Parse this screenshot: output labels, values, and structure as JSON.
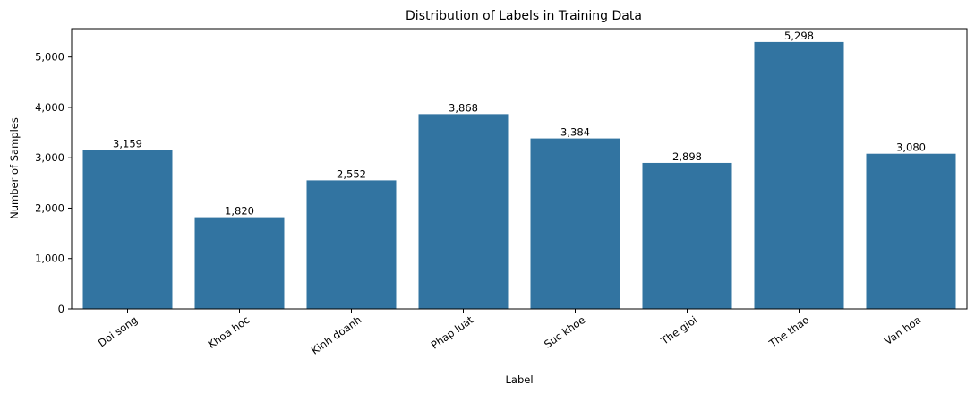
{
  "chart_data": {
    "type": "bar",
    "title": "Distribution of Labels in Training Data",
    "xlabel": "Label",
    "ylabel": "Number of Samples",
    "categories": [
      "Doi song",
      "Khoa hoc",
      "Kinh doanh",
      "Phap luat",
      "Suc khoe",
      "The gioi",
      "The thao",
      "Van hoa"
    ],
    "values": [
      3159,
      1820,
      2552,
      3868,
      3384,
      2898,
      5298,
      3080
    ],
    "data_labels": [
      "3,159",
      "1,820",
      "2,552",
      "3,868",
      "3,384",
      "2,898",
      "5,298",
      "3,080"
    ],
    "ylim": [
      0,
      5563
    ],
    "yticks": [
      0,
      1000,
      2000,
      3000,
      4000,
      5000
    ],
    "ytick_labels": [
      "0",
      "1,000",
      "2,000",
      "3,000",
      "4,000",
      "5,000"
    ],
    "x_tick_rotation_deg": 35,
    "bar_color": "#3274a1",
    "grid": false,
    "legend": "none"
  }
}
